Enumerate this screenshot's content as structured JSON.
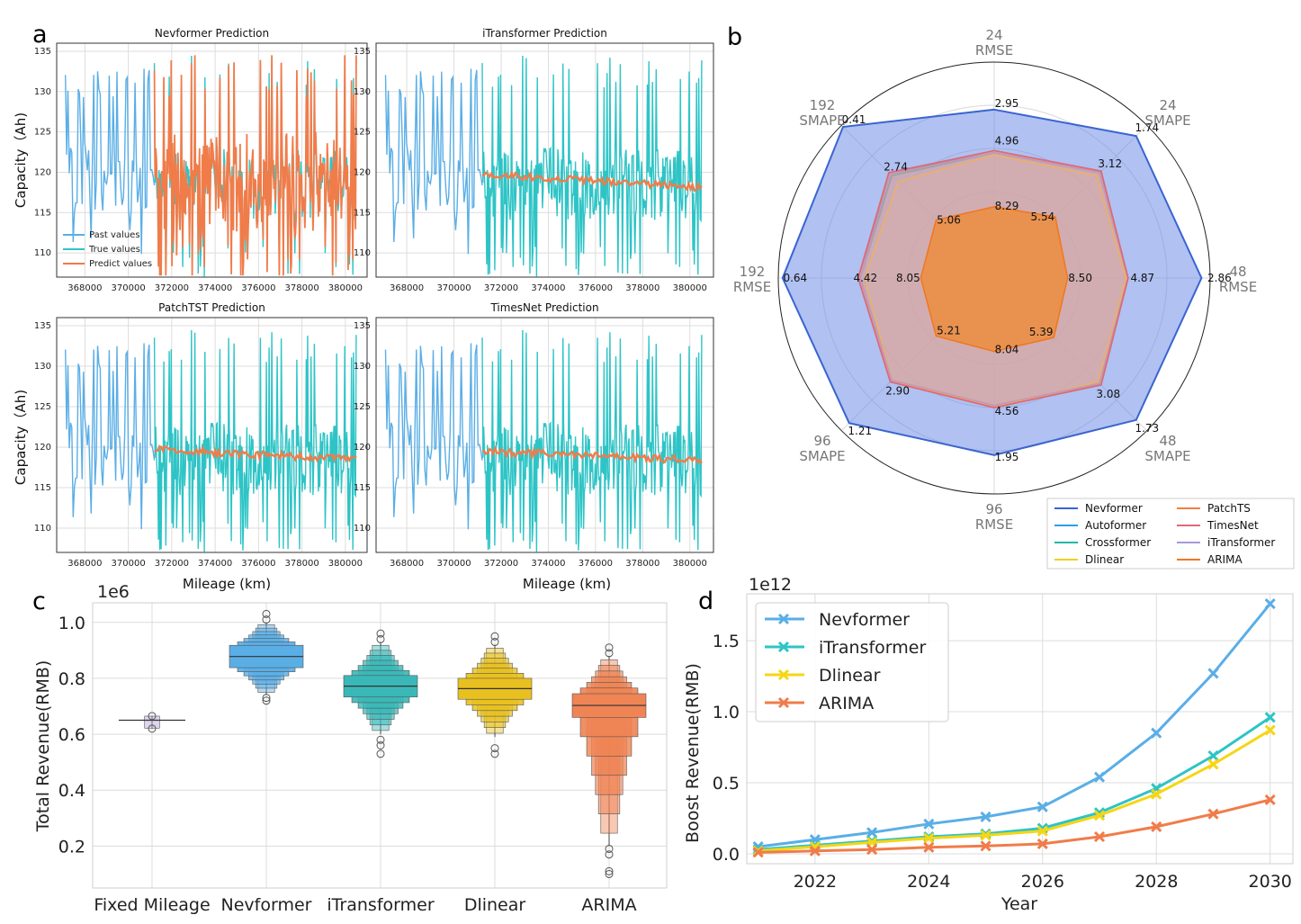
{
  "panel_letters": {
    "a": "a",
    "b": "b",
    "c": "c",
    "d": "d"
  },
  "colors": {
    "past": "#5aaee6",
    "true": "#2ec4c6",
    "predict": "#f07c4a",
    "Nevformer": "#3a64d0",
    "Autoformer": "#2aa0e8",
    "Crossformer": "#22b7a8",
    "Dlinear": "#f0d020",
    "PatchTS": "#f08040",
    "TimesNet": "#e06878",
    "iTransformer": "#a898d8",
    "ARIMA": "#f07820",
    "radar_fill": "#6f8ee8",
    "d_nev": "#5aaee6",
    "d_itr": "#2ec4c6",
    "d_dli": "#f5d614",
    "d_ari": "#f07c4a",
    "box_fixed": "#b3a3d6",
    "box_nev": "#5aaee6",
    "box_itr": "#3ab8b8",
    "box_dli": "#e8c020",
    "box_ari": "#ef8455"
  },
  "chart_data": [
    {
      "type": "line",
      "panel": "a",
      "xlabel": "Mileage (km)",
      "ylabel": "Capacity（Ah)",
      "xticks": [
        368000,
        370000,
        372000,
        374000,
        376000,
        378000,
        380000
      ],
      "yticks": [
        110,
        115,
        120,
        125,
        130,
        135
      ],
      "xlim": [
        366700,
        381000
      ],
      "ylim": [
        107,
        136
      ],
      "legend": [
        "Past values",
        "True values",
        "Predict values"
      ],
      "subplots": [
        {
          "title": "Nevformer Prediction",
          "prediction": "follows"
        },
        {
          "title": "iTransformer Prediction",
          "prediction": "flat",
          "start": 119.8,
          "end": 118.1
        },
        {
          "title": "PatchTST Prediction",
          "prediction": "flat",
          "start": 119.7,
          "end": 118.5
        },
        {
          "title": "TimesNet Prediction",
          "prediction": "flat",
          "start": 119.5,
          "end": 118.4
        }
      ]
    },
    {
      "type": "radar",
      "panel": "b",
      "axes": [
        {
          "h": "24",
          "m": "RMSE"
        },
        {
          "h": "24",
          "m": "SMAPE"
        },
        {
          "h": "48",
          "m": "RMSE"
        },
        {
          "h": "48",
          "m": "SMAPE"
        },
        {
          "h": "96",
          "m": "RMSE"
        },
        {
          "h": "96",
          "m": "SMAPE"
        },
        {
          "h": "192",
          "m": "RMSE"
        },
        {
          "h": "192",
          "m": "SMAPE"
        }
      ],
      "nevformer_labels": [
        "2.95",
        "1.74",
        "2.86",
        "1.73",
        "1.95",
        "1.21",
        "0.64",
        "0.41"
      ],
      "mid_labels": [
        "4.96",
        "3.12",
        "4.87",
        "3.08",
        "4.56",
        "2.90",
        "4.42",
        "2.74"
      ],
      "arima_labels": [
        "8.29",
        "5.54",
        "8.50",
        "5.39",
        "8.04",
        "5.21",
        "8.05",
        "5.06"
      ],
      "radius_fraction": {
        "Nevformer": [
          0.78,
          0.93,
          0.96,
          0.93,
          0.82,
          0.95,
          0.98,
          0.99
        ],
        "Autoformer": [
          0.59,
          0.7,
          0.62,
          0.7,
          0.6,
          0.68,
          0.63,
          0.68
        ],
        "Crossformer": [
          0.58,
          0.69,
          0.62,
          0.69,
          0.59,
          0.67,
          0.62,
          0.67
        ],
        "Dlinear": [
          0.57,
          0.67,
          0.61,
          0.68,
          0.6,
          0.67,
          0.6,
          0.63
        ],
        "PatchTS": [
          0.59,
          0.7,
          0.62,
          0.7,
          0.6,
          0.68,
          0.63,
          0.69
        ],
        "TimesNet": [
          0.59,
          0.7,
          0.62,
          0.7,
          0.6,
          0.68,
          0.63,
          0.69
        ],
        "iTransformer": [
          0.58,
          0.69,
          0.62,
          0.69,
          0.59,
          0.67,
          0.62,
          0.68
        ],
        "ARIMA": [
          0.33,
          0.4,
          0.34,
          0.39,
          0.34,
          0.38,
          0.34,
          0.38
        ]
      },
      "legend": [
        "Nevformer",
        "Autoformer",
        "Crossformer",
        "Dlinear",
        "PatchTS",
        "TimesNet",
        "iTransformer",
        "ARIMA"
      ]
    },
    {
      "type": "boxen",
      "panel": "c",
      "ylabel": "Total Revenue(RMB)",
      "scale_label": "1e6",
      "yticks": [
        "0.2",
        "0.4",
        "0.6",
        "0.8",
        "1.0"
      ],
      "ylim": [
        0.05,
        1.07
      ],
      "categories": [
        "Fixed Mileage",
        "Nevformer",
        "iTransformer",
        "Dlinear",
        "ARIMA"
      ],
      "stats": [
        {
          "median": 0.65,
          "q1": 0.638,
          "q3": 0.662,
          "min": 0.62,
          "max": 0.665,
          "outliers": [
            0.62,
            0.665
          ]
        },
        {
          "median": 0.878,
          "q1": 0.838,
          "q3": 0.918,
          "min": 0.74,
          "max": 1.0,
          "outliers": [
            0.72,
            0.73,
            1.01,
            1.03
          ]
        },
        {
          "median": 0.772,
          "q1": 0.733,
          "q3": 0.81,
          "min": 0.6,
          "max": 0.93,
          "outliers": [
            0.53,
            0.56,
            0.58,
            0.94,
            0.96
          ]
        },
        {
          "median": 0.763,
          "q1": 0.725,
          "q3": 0.8,
          "min": 0.59,
          "max": 0.92,
          "outliers": [
            0.53,
            0.55,
            0.93,
            0.95
          ]
        },
        {
          "median": 0.703,
          "q1": 0.66,
          "q3": 0.745,
          "min": 0.2,
          "max": 0.88,
          "outliers": [
            0.1,
            0.11,
            0.17,
            0.19,
            0.89,
            0.91
          ]
        }
      ]
    },
    {
      "type": "line",
      "panel": "d",
      "xlabel": "Year",
      "ylabel": "Boost Revenue(RMB)",
      "scale_label": "1e12",
      "xticks": [
        "2022",
        "2024",
        "2026",
        "2028",
        "2030"
      ],
      "yticks": [
        "0.0",
        "0.5",
        "1.0",
        "1.5"
      ],
      "xlim": [
        2020.8,
        2030.4
      ],
      "ylim": [
        -0.07,
        1.83
      ],
      "x": [
        2021,
        2022,
        2023,
        2024,
        2025,
        2026,
        2027,
        2028,
        2029,
        2030
      ],
      "series": [
        {
          "name": "Nevformer",
          "values": [
            0.05,
            0.1,
            0.15,
            0.21,
            0.26,
            0.33,
            0.54,
            0.85,
            1.27,
            1.76
          ]
        },
        {
          "name": "iTransformer",
          "values": [
            0.03,
            0.06,
            0.09,
            0.12,
            0.14,
            0.18,
            0.29,
            0.46,
            0.69,
            0.96
          ]
        },
        {
          "name": "Dlinear",
          "values": [
            0.02,
            0.05,
            0.08,
            0.11,
            0.13,
            0.16,
            0.27,
            0.42,
            0.63,
            0.87
          ]
        },
        {
          "name": "ARIMA",
          "values": [
            0.01,
            0.02,
            0.03,
            0.045,
            0.055,
            0.07,
            0.12,
            0.19,
            0.28,
            0.38
          ]
        }
      ]
    }
  ]
}
